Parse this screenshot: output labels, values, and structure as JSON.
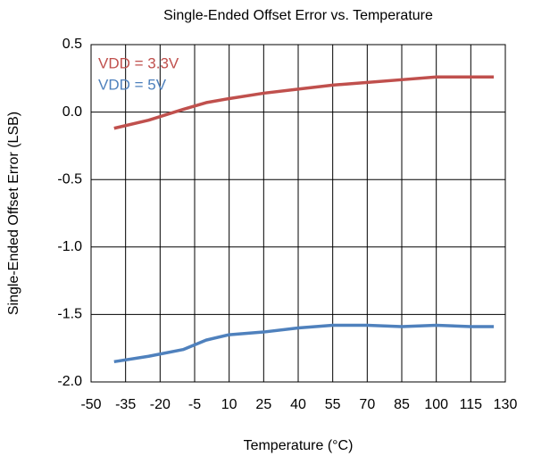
{
  "chart_data": {
    "type": "line",
    "title": "Single-Ended Offset Error vs. Temperature",
    "x_label": "Temperature (°C)",
    "y_label": "Single-Ended Offset Error (LSB)",
    "x": [
      -40,
      -25,
      -10,
      0,
      10,
      25,
      40,
      55,
      70,
      85,
      100,
      115,
      125
    ],
    "series": [
      {
        "name": "VDD = 3.3V",
        "color": "#c0504d",
        "values": [
          -0.12,
          -0.06,
          0.02,
          0.07,
          0.1,
          0.14,
          0.17,
          0.2,
          0.22,
          0.24,
          0.26,
          0.26,
          0.26
        ]
      },
      {
        "name": "VDD = 5V",
        "color": "#4f81bd",
        "values": [
          -1.85,
          -1.81,
          -1.76,
          -1.69,
          -1.65,
          -1.63,
          -1.6,
          -1.58,
          -1.58,
          -1.59,
          -1.58,
          -1.59,
          -1.59
        ]
      }
    ],
    "xlim": [
      -50,
      130
    ],
    "xticks": [
      -50,
      -35,
      -20,
      -5,
      10,
      25,
      40,
      55,
      70,
      85,
      100,
      115,
      130
    ],
    "ylim": [
      -2.0,
      0.5
    ],
    "yticks": [
      {
        "value": -2.0,
        "label": "-2.0"
      },
      -1.5,
      {
        "value": -1.0,
        "label": "-1.0"
      },
      -0.5,
      {
        "value": 0,
        "label": "0.0"
      },
      0.5
    ],
    "grid": true,
    "legend": "top-left"
  }
}
